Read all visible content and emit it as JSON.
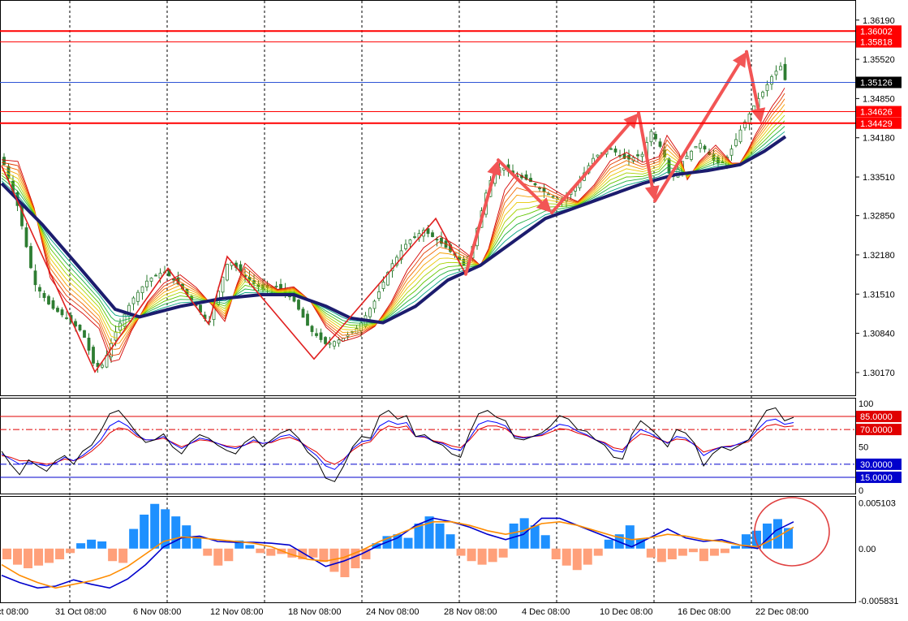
{
  "colors": {
    "background": "#ffffff",
    "grid": "#000000",
    "price_level": "#ff0000",
    "current_price_line": "#2f54d6",
    "current_price_box": "#000000",
    "trend_zigzag": "#e02020",
    "arrow": "#f25555",
    "slow_ma": "#1c1c6e",
    "candle_up": "#2e7d32",
    "candle_down": "#2e7d32",
    "osc_black": "#000000",
    "osc_blue": "#0000ff",
    "osc_red": "#e00000",
    "macd_line": "#0000cc",
    "signal_line": "#ff8c00",
    "hist_pos": "#1e90ff",
    "hist_neg": "#ffa07a",
    "highlight_circle": "#e04040"
  },
  "chart_data": [
    {
      "type": "candlestick",
      "panel": "price",
      "symbol": "",
      "timeframe": "H4",
      "ylim": [
        1.2985,
        1.3645
      ],
      "price_axis_ticks": [
        "1.36190",
        "1.35520",
        "1.34850",
        "1.34180",
        "1.33510",
        "1.32850",
        "1.32180",
        "1.31510",
        "1.30840",
        "1.30170"
      ],
      "price_levels": [
        {
          "label": "1.36002",
          "value": 1.36002,
          "style": "thick"
        },
        {
          "label": "1.35818",
          "value": 1.35818,
          "style": "thin"
        },
        {
          "label": "1.34626",
          "value": 1.34626,
          "style": "thin"
        },
        {
          "label": "1.34429",
          "value": 1.34429,
          "style": "thick"
        }
      ],
      "current_price": {
        "label": "1.35126",
        "value": 1.35126
      },
      "x_axis_labels": [
        "ct 08:00",
        "31 Oct 08:00",
        "6 Nov 08:00",
        "12 Nov 08:00",
        "18 Nov 08:00",
        "24 Nov 08:00",
        "28 Nov 08:00",
        "4 Dec 08:00",
        "10 Dec 08:00",
        "16 Dec 08:00",
        "22 Dec 08:00"
      ],
      "price_path": [
        {
          "t": 0,
          "v": 1.3385
        },
        {
          "t": 2,
          "v": 1.33
        },
        {
          "t": 4,
          "v": 1.317
        },
        {
          "t": 6,
          "v": 1.313
        },
        {
          "t": 8,
          "v": 1.311
        },
        {
          "t": 10,
          "v": 1.3085
        },
        {
          "t": 11.5,
          "v": 1.3025
        },
        {
          "t": 12.5,
          "v": 1.303
        },
        {
          "t": 14,
          "v": 1.3085
        },
        {
          "t": 16,
          "v": 1.314
        },
        {
          "t": 18,
          "v": 1.3175
        },
        {
          "t": 20,
          "v": 1.319
        },
        {
          "t": 22,
          "v": 1.3165
        },
        {
          "t": 24,
          "v": 1.313
        },
        {
          "t": 25.5,
          "v": 1.31
        },
        {
          "t": 27,
          "v": 1.317
        },
        {
          "t": 28,
          "v": 1.321
        },
        {
          "t": 30,
          "v": 1.318
        },
        {
          "t": 32,
          "v": 1.316
        },
        {
          "t": 34,
          "v": 1.3165
        },
        {
          "t": 36,
          "v": 1.314
        },
        {
          "t": 38,
          "v": 1.309
        },
        {
          "t": 40,
          "v": 1.3065
        },
        {
          "t": 42,
          "v": 1.3075
        },
        {
          "t": 44,
          "v": 1.3095
        },
        {
          "t": 46,
          "v": 1.314
        },
        {
          "t": 48,
          "v": 1.32
        },
        {
          "t": 50,
          "v": 1.324
        },
        {
          "t": 52,
          "v": 1.326
        },
        {
          "t": 54,
          "v": 1.324
        },
        {
          "t": 56,
          "v": 1.3215
        },
        {
          "t": 57,
          "v": 1.32
        },
        {
          "t": 58,
          "v": 1.323
        },
        {
          "t": 60,
          "v": 1.334
        },
        {
          "t": 61.5,
          "v": 1.337
        },
        {
          "t": 63,
          "v": 1.3355
        },
        {
          "t": 65,
          "v": 1.3345
        },
        {
          "t": 67,
          "v": 1.3325
        },
        {
          "t": 69,
          "v": 1.331
        },
        {
          "t": 71,
          "v": 1.334
        },
        {
          "t": 73,
          "v": 1.3385
        },
        {
          "t": 75,
          "v": 1.34
        },
        {
          "t": 77,
          "v": 1.338
        },
        {
          "t": 79,
          "v": 1.339
        },
        {
          "t": 80,
          "v": 1.343
        },
        {
          "t": 81.5,
          "v": 1.3395
        },
        {
          "t": 82.5,
          "v": 1.3345
        },
        {
          "t": 84,
          "v": 1.338
        },
        {
          "t": 86,
          "v": 1.341
        },
        {
          "t": 88,
          "v": 1.3375
        },
        {
          "t": 89,
          "v": 1.3375
        },
        {
          "t": 90,
          "v": 1.34
        },
        {
          "t": 91,
          "v": 1.343
        },
        {
          "t": 92,
          "v": 1.3455
        },
        {
          "t": 93,
          "v": 1.348
        },
        {
          "t": 94,
          "v": 1.35
        },
        {
          "t": 95,
          "v": 1.3525
        },
        {
          "t": 96,
          "v": 1.354
        },
        {
          "t": 96.6,
          "v": 1.3515
        }
      ],
      "slow_ma_path": [
        {
          "t": 0,
          "v": 1.334
        },
        {
          "t": 5,
          "v": 1.327
        },
        {
          "t": 10,
          "v": 1.319
        },
        {
          "t": 14,
          "v": 1.3125
        },
        {
          "t": 17,
          "v": 1.3112
        },
        {
          "t": 22,
          "v": 1.313
        },
        {
          "t": 27,
          "v": 1.3143
        },
        {
          "t": 32,
          "v": 1.315
        },
        {
          "t": 36,
          "v": 1.315
        },
        {
          "t": 40,
          "v": 1.313
        },
        {
          "t": 43,
          "v": 1.311
        },
        {
          "t": 47,
          "v": 1.3102
        },
        {
          "t": 51,
          "v": 1.313
        },
        {
          "t": 55,
          "v": 1.3175
        },
        {
          "t": 59,
          "v": 1.32
        },
        {
          "t": 63,
          "v": 1.324
        },
        {
          "t": 67,
          "v": 1.328
        },
        {
          "t": 71,
          "v": 1.33
        },
        {
          "t": 75,
          "v": 1.332
        },
        {
          "t": 79,
          "v": 1.334
        },
        {
          "t": 83,
          "v": 1.3355
        },
        {
          "t": 87,
          "v": 1.3362
        },
        {
          "t": 91,
          "v": 1.3372
        },
        {
          "t": 94,
          "v": 1.3395
        },
        {
          "t": 96.6,
          "v": 1.342
        }
      ],
      "zigzag": [
        {
          "t": 0,
          "v": 1.337
        },
        {
          "t": 11.5,
          "v": 1.3018
        },
        {
          "t": 20.5,
          "v": 1.3195
        },
        {
          "t": 25.5,
          "v": 1.31
        },
        {
          "t": 27.8,
          "v": 1.3215
        },
        {
          "t": 38.5,
          "v": 1.304
        },
        {
          "t": 53.5,
          "v": 1.328
        },
        {
          "t": 57.2,
          "v": 1.3185
        }
      ],
      "arrows": [
        {
          "from": {
            "t": 57.2,
            "v": 1.3185
          },
          "to": {
            "t": 61.2,
            "v": 1.338
          }
        },
        {
          "from": {
            "t": 61.2,
            "v": 1.338
          },
          "to": {
            "t": 67.8,
            "v": 1.329
          }
        },
        {
          "from": {
            "t": 67.8,
            "v": 1.329
          },
          "to": {
            "t": 78.5,
            "v": 1.346
          }
        },
        {
          "from": {
            "t": 78.5,
            "v": 1.346
          },
          "to": {
            "t": 80.5,
            "v": 1.331
          }
        },
        {
          "from": {
            "t": 80.5,
            "v": 1.331
          },
          "to": {
            "t": 91.8,
            "v": 1.3565
          }
        },
        {
          "from": {
            "t": 91.8,
            "v": 1.3565
          },
          "to": {
            "t": 93.6,
            "v": 1.3443
          }
        }
      ]
    },
    {
      "type": "line",
      "panel": "oscillator",
      "ylim": [
        0,
        100
      ],
      "axis_ticks": [
        "100",
        "50",
        "0"
      ],
      "levels": [
        {
          "label": "85.0000",
          "value": 85,
          "color": "#e00000",
          "style": "solid"
        },
        {
          "label": "70.0000",
          "value": 70,
          "color": "#e00000",
          "style": "dashdot"
        },
        {
          "label": "30.0000",
          "value": 30,
          "color": "#0000cc",
          "style": "dashdot"
        },
        {
          "label": "15.0000",
          "value": 15,
          "color": "#0000cc",
          "style": "solid"
        }
      ],
      "black": [
        45,
        30,
        18,
        35,
        28,
        22,
        34,
        40,
        30,
        45,
        52,
        68,
        88,
        92,
        80,
        66,
        55,
        58,
        65,
        50,
        42,
        56,
        64,
        60,
        52,
        46,
        42,
        55,
        62,
        50,
        58,
        66,
        70,
        60,
        44,
        35,
        14,
        10,
        28,
        50,
        62,
        60,
        86,
        92,
        82,
        86,
        62,
        64,
        56,
        52,
        42,
        38,
        66,
        88,
        92,
        84,
        80,
        60,
        58,
        62,
        66,
        74,
        86,
        82,
        70,
        68,
        58,
        52,
        38,
        36,
        64,
        80,
        72,
        62,
        50,
        70,
        66,
        54,
        28,
        42,
        50,
        46,
        52,
        58,
        76,
        92,
        95,
        80,
        84
      ],
      "blue": [
        42,
        36,
        30,
        32,
        30,
        28,
        31,
        38,
        34,
        40,
        48,
        58,
        74,
        80,
        74,
        64,
        58,
        58,
        62,
        54,
        48,
        54,
        60,
        58,
        54,
        50,
        48,
        52,
        58,
        54,
        56,
        62,
        64,
        58,
        48,
        40,
        28,
        24,
        34,
        48,
        56,
        58,
        74,
        80,
        76,
        78,
        62,
        62,
        56,
        54,
        48,
        46,
        60,
        76,
        80,
        78,
        74,
        62,
        60,
        62,
        64,
        70,
        76,
        74,
        68,
        64,
        58,
        54,
        46,
        44,
        60,
        70,
        66,
        60,
        54,
        62,
        60,
        52,
        40,
        46,
        50,
        50,
        54,
        58,
        70,
        80,
        82,
        76,
        78
      ],
      "red": [
        40,
        38,
        34,
        34,
        32,
        30,
        32,
        36,
        34,
        38,
        45,
        54,
        66,
        72,
        70,
        62,
        58,
        58,
        60,
        55,
        50,
        54,
        58,
        57,
        54,
        51,
        50,
        52,
        56,
        54,
        55,
        59,
        61,
        57,
        50,
        44,
        34,
        30,
        36,
        46,
        53,
        56,
        68,
        74,
        72,
        74,
        62,
        61,
        57,
        55,
        51,
        49,
        58,
        70,
        74,
        74,
        71,
        63,
        61,
        62,
        63,
        67,
        71,
        70,
        66,
        63,
        58,
        55,
        49,
        47,
        57,
        65,
        63,
        59,
        55,
        59,
        58,
        53,
        44,
        47,
        50,
        51,
        53,
        56,
        66,
        74,
        76,
        73,
        74
      ]
    },
    {
      "type": "bar",
      "panel": "macd",
      "ylim": [
        -0.00583,
        0.00543
      ],
      "axis_ticks": [
        "0.005103",
        "0.00",
        "-0.005831"
      ],
      "histogram": [
        -0.0012,
        -0.0018,
        -0.0022,
        -0.0019,
        -0.0016,
        -0.0012,
        -0.0005,
        0.0006,
        0.001,
        0.0008,
        -0.0014,
        -0.0016,
        0.0022,
        0.0038,
        0.005,
        0.0044,
        0.0036,
        0.0026,
        0.0014,
        -0.0008,
        -0.0019,
        -0.0014,
        0.0009,
        0.0004,
        -0.0005,
        -0.0008,
        -0.0006,
        -0.001,
        -0.0012,
        -0.001,
        -0.0015,
        -0.0026,
        -0.0032,
        -0.0022,
        -0.0012,
        0.0006,
        0.0014,
        0.0016,
        0.0012,
        0.0028,
        0.0036,
        0.0028,
        0.0016,
        -0.0008,
        -0.0014,
        -0.0018,
        -0.0015,
        -0.001,
        0.0028,
        0.0034,
        0.0026,
        0.0015,
        -0.0012,
        -0.0019,
        -0.0024,
        -0.0018,
        -0.0008,
        0.001,
        0.0016,
        0.0026,
        0.0011,
        -0.001,
        -0.0015,
        -0.0012,
        -0.0008,
        -0.0004,
        -0.0014,
        -0.0008,
        -0.0005,
        0.0003,
        0.0016,
        0.002,
        0.0028,
        0.0033,
        0.0023
      ],
      "macd": [
        -0.003,
        -0.0038,
        -0.0044,
        -0.0042,
        -0.0035,
        -0.004,
        -0.0044,
        -0.0034,
        -0.0018,
        0.0002,
        0.0012,
        0.0014,
        0.0008,
        0.0007,
        0.0007,
        0.0006,
        0.0004,
        -0.0008,
        -0.002,
        -0.0014,
        -0.0006,
        0.0004,
        0.0012,
        0.0026,
        0.0034,
        0.003,
        0.0024,
        0.0016,
        0.001,
        0.0016,
        0.0034,
        0.0034,
        0.0026,
        0.0018,
        0.001,
        0.0002,
        0.0012,
        0.0022,
        0.0012,
        0.0008,
        0.001,
        0.0004,
        0.0,
        0.002,
        0.003
      ],
      "signal": [
        -0.0018,
        -0.003,
        -0.0038,
        -0.0044,
        -0.004,
        -0.0036,
        -0.003,
        -0.002,
        -0.0006,
        0.0008,
        0.0013,
        0.0012,
        0.001,
        0.0008,
        0.0006,
        0.0002,
        -0.0006,
        -0.0012,
        -0.0014,
        -0.001,
        -0.0002,
        0.0008,
        0.0016,
        0.0024,
        0.003,
        0.003,
        0.0026,
        0.002,
        0.0016,
        0.002,
        0.0028,
        0.003,
        0.0026,
        0.002,
        0.0014,
        0.001,
        0.0012,
        0.0016,
        0.0014,
        0.001,
        0.0008,
        0.0004,
        0.0002,
        0.0012,
        0.0024
      ],
      "highlight": "ellipse around latest bars"
    }
  ]
}
